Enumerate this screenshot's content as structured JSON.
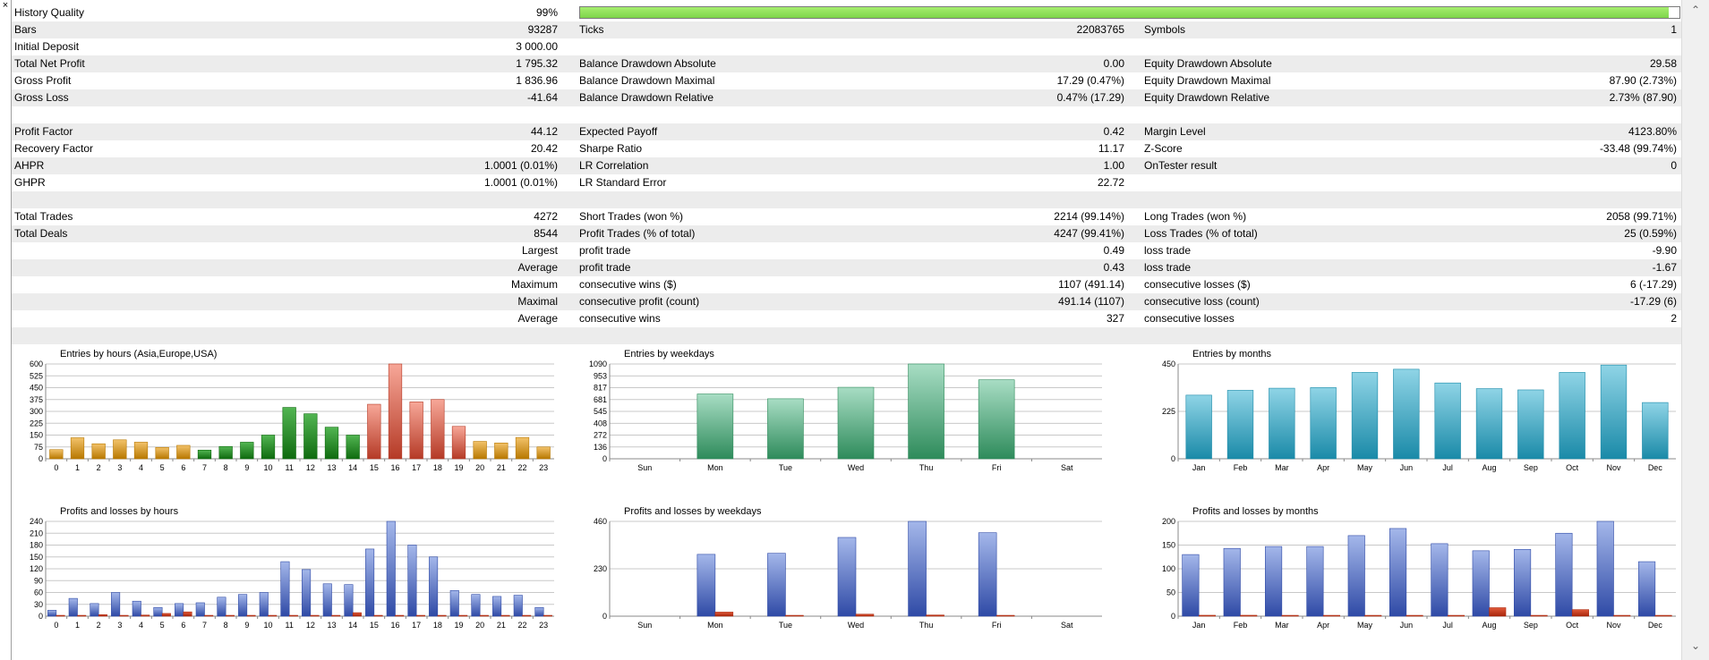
{
  "window": {
    "close_glyph": "×"
  },
  "report": {
    "history_quality": {
      "label": "History Quality",
      "value": "99%",
      "bar_fraction": 0.99
    },
    "rows": [
      {
        "c": [
          "Bars",
          "93287",
          "Ticks",
          "22083765",
          "Symbols",
          "1"
        ]
      },
      {
        "c": [
          "Initial Deposit",
          "3 000.00",
          "",
          "",
          "",
          ""
        ]
      },
      {
        "c": [
          "Total Net Profit",
          "1 795.32",
          "Balance Drawdown Absolute",
          "0.00",
          "Equity Drawdown Absolute",
          "29.58"
        ]
      },
      {
        "c": [
          "Gross Profit",
          "1 836.96",
          "Balance Drawdown Maximal",
          "17.29 (0.47%)",
          "Equity Drawdown Maximal",
          "87.90 (2.73%)"
        ]
      },
      {
        "c": [
          "Gross Loss",
          "-41.64",
          "Balance Drawdown Relative",
          "0.47% (17.29)",
          "Equity Drawdown Relative",
          "2.73% (87.90)"
        ]
      },
      {
        "c": [
          "",
          "",
          "",
          "",
          "",
          ""
        ]
      },
      {
        "c": [
          "Profit Factor",
          "44.12",
          "Expected Payoff",
          "0.42",
          "Margin Level",
          "4123.80%"
        ]
      },
      {
        "c": [
          "Recovery Factor",
          "20.42",
          "Sharpe Ratio",
          "11.17",
          "Z-Score",
          "-33.48 (99.74%)"
        ]
      },
      {
        "c": [
          "AHPR",
          "1.0001 (0.01%)",
          "LR Correlation",
          "1.00",
          "OnTester result",
          "0"
        ]
      },
      {
        "c": [
          "GHPR",
          "1.0001 (0.01%)",
          "LR Standard Error",
          "22.72",
          "",
          ""
        ]
      },
      {
        "c": [
          "",
          "",
          "",
          "",
          "",
          ""
        ]
      },
      {
        "c": [
          "Total Trades",
          "4272",
          "Short Trades (won %)",
          "2214 (99.14%)",
          "Long Trades (won %)",
          "2058 (99.71%)"
        ]
      },
      {
        "c": [
          "Total Deals",
          "8544",
          "Profit Trades (% of total)",
          "4247 (99.41%)",
          "Loss Trades (% of total)",
          "25 (0.59%)"
        ]
      },
      {
        "c": [
          "",
          "Largest",
          "profit trade",
          "0.49",
          "loss trade",
          "-9.90"
        ]
      },
      {
        "c": [
          "",
          "Average",
          "profit trade",
          "0.43",
          "loss trade",
          "-1.67"
        ]
      },
      {
        "c": [
          "",
          "Maximum",
          "consecutive wins ($)",
          "1107 (491.14)",
          "consecutive losses ($)",
          "6 (-17.29)"
        ]
      },
      {
        "c": [
          "",
          "Maximal",
          "consecutive profit (count)",
          "491.14 (1107)",
          "consecutive loss (count)",
          "-17.29 (6)"
        ]
      },
      {
        "c": [
          "",
          "Average",
          "consecutive wins",
          "327",
          "consecutive losses",
          "2"
        ]
      },
      {
        "c": [
          "",
          "",
          "",
          "",
          "",
          ""
        ]
      }
    ]
  },
  "colors": {
    "orange": [
      "#f2c26a",
      "#b87800"
    ],
    "green": [
      "#52b552",
      "#0f6b0f"
    ],
    "red": [
      "#f7a798",
      "#b53a26"
    ],
    "teal": [
      "#a8ddc4",
      "#2e8b5b"
    ],
    "cyan": [
      "#8fd4e6",
      "#1a8aa8"
    ],
    "blue": [
      "#a4b7ea",
      "#2f4aa6"
    ],
    "loss": [
      "#e05a3a",
      "#a8260c"
    ]
  },
  "chart_data": [
    {
      "type": "bar",
      "title": "Entries by hours (Asia,Europe,USA)",
      "categories": [
        "0",
        "1",
        "2",
        "3",
        "4",
        "5",
        "6",
        "7",
        "8",
        "9",
        "10",
        "11",
        "12",
        "13",
        "14",
        "15",
        "16",
        "17",
        "18",
        "19",
        "20",
        "21",
        "22",
        "23"
      ],
      "values": [
        58,
        133,
        95,
        120,
        105,
        72,
        85,
        55,
        78,
        105,
        150,
        325,
        285,
        200,
        150,
        345,
        600,
        360,
        375,
        205,
        110,
        100,
        135,
        75
      ],
      "yticks": [
        "0",
        "75",
        "150",
        "225",
        "300",
        "375",
        "450",
        "525",
        "600"
      ],
      "ylim": [
        0,
        600
      ],
      "palette": "hours"
    },
    {
      "type": "bar",
      "title": "Entries by weekdays",
      "categories": [
        "Sun",
        "Mon",
        "Tue",
        "Wed",
        "Thu",
        "Fri",
        "Sat"
      ],
      "values": [
        0,
        745,
        690,
        822,
        1090,
        908,
        0
      ],
      "yticks": [
        "0",
        "136",
        "272",
        "408",
        "545",
        "681",
        "817",
        "953",
        "1090"
      ],
      "ylim": [
        0,
        1090
      ],
      "palette": "teal"
    },
    {
      "type": "bar",
      "title": "Entries by months",
      "categories": [
        "Jan",
        "Feb",
        "Mar",
        "Apr",
        "May",
        "Jun",
        "Jul",
        "Aug",
        "Sep",
        "Oct",
        "Nov",
        "Dec"
      ],
      "values": [
        302,
        325,
        335,
        338,
        410,
        425,
        360,
        333,
        327,
        410,
        445,
        267
      ],
      "yticks": [
        "0",
        "225",
        "450"
      ],
      "ylim": [
        0,
        450
      ],
      "palette": "cyan"
    },
    {
      "type": "bar",
      "title": "Profits and losses by hours",
      "categories": [
        "0",
        "1",
        "2",
        "3",
        "4",
        "5",
        "6",
        "7",
        "8",
        "9",
        "10",
        "11",
        "12",
        "13",
        "14",
        "15",
        "16",
        "17",
        "18",
        "19",
        "20",
        "21",
        "22",
        "23"
      ],
      "series": [
        {
          "values": [
            15,
            45,
            32,
            60,
            38,
            22,
            32,
            34,
            48,
            55,
            60,
            138,
            118,
            82,
            80,
            170,
            240,
            180,
            150,
            65,
            55,
            50,
            53,
            22
          ]
        },
        {
          "values": [
            1,
            2,
            4,
            2,
            3,
            7,
            11,
            2,
            2,
            2,
            2,
            2,
            2,
            2,
            9,
            2,
            2,
            2,
            2,
            2,
            2,
            2,
            2,
            2
          ]
        }
      ],
      "yticks": [
        "0",
        "30",
        "60",
        "90",
        "120",
        "150",
        "180",
        "210",
        "240"
      ],
      "ylim": [
        0,
        240
      ],
      "palette": "blue"
    },
    {
      "type": "bar",
      "title": "Profits and losses by weekdays",
      "categories": [
        "Sun",
        "Mon",
        "Tue",
        "Wed",
        "Thu",
        "Fri",
        "Sat"
      ],
      "series": [
        {
          "values": [
            0,
            300,
            305,
            382,
            460,
            405,
            0
          ]
        },
        {
          "values": [
            0,
            20,
            3,
            10,
            6,
            3,
            0
          ]
        }
      ],
      "yticks": [
        "0",
        "230",
        "460"
      ],
      "ylim": [
        0,
        460
      ],
      "palette": "blue"
    },
    {
      "type": "bar",
      "title": "Profits and losses by months",
      "categories": [
        "Jan",
        "Feb",
        "Mar",
        "Apr",
        "May",
        "Jun",
        "Jul",
        "Aug",
        "Sep",
        "Oct",
        "Nov",
        "Dec"
      ],
      "series": [
        {
          "values": [
            130,
            143,
            147,
            147,
            170,
            185,
            153,
            138,
            141,
            175,
            200,
            115
          ]
        },
        {
          "values": [
            2,
            2,
            1,
            1,
            1,
            1,
            1,
            18,
            1,
            14,
            1,
            1
          ]
        }
      ],
      "yticks": [
        "0",
        "50",
        "100",
        "150",
        "200"
      ],
      "ylim": [
        0,
        200
      ],
      "palette": "blue"
    }
  ]
}
